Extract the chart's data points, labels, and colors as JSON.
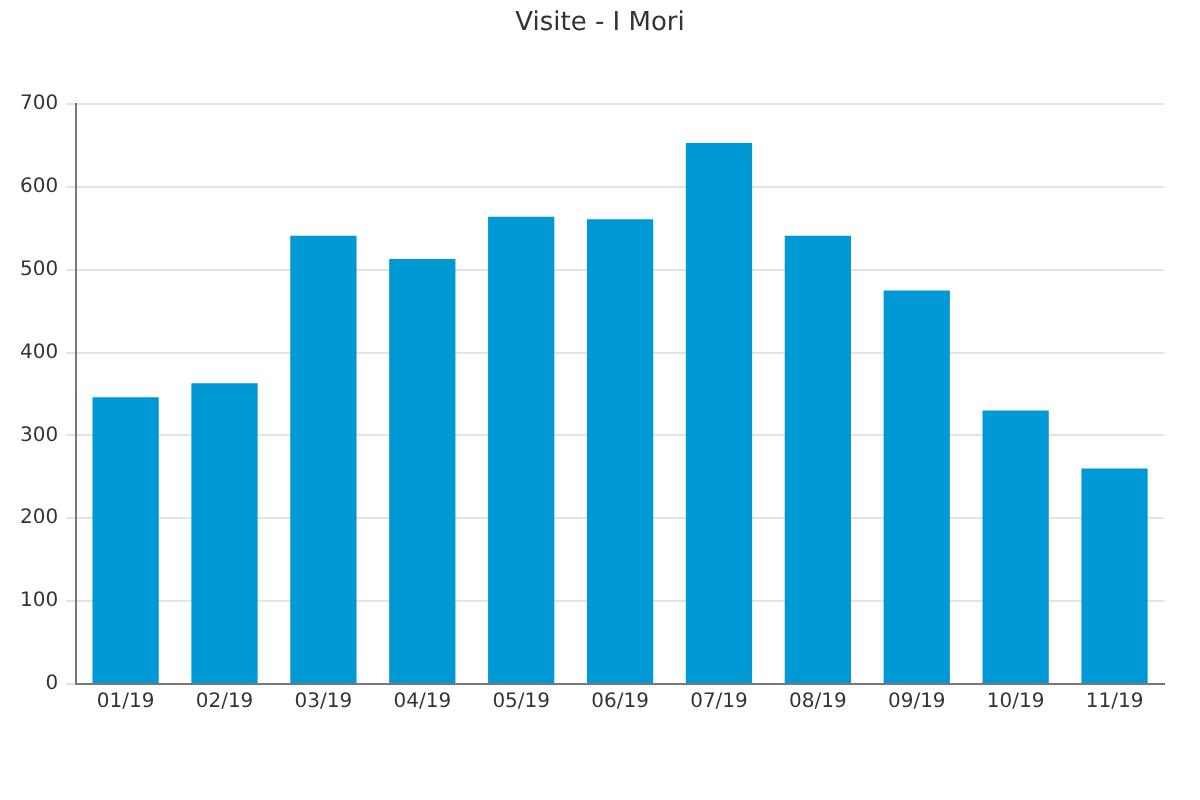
{
  "chart_data": {
    "type": "bar",
    "title": "Visite - I Mori",
    "categories": [
      "01/19",
      "02/19",
      "03/19",
      "04/19",
      "05/19",
      "06/19",
      "07/19",
      "08/19",
      "09/19",
      "10/19",
      "11/19"
    ],
    "values": [
      346,
      363,
      541,
      513,
      564,
      561,
      653,
      541,
      475,
      330,
      260
    ],
    "color": "#0099d6",
    "ylim": [
      0,
      700
    ],
    "yticks": [
      0,
      100,
      200,
      300,
      400,
      500,
      600,
      700
    ],
    "grid": "y"
  }
}
